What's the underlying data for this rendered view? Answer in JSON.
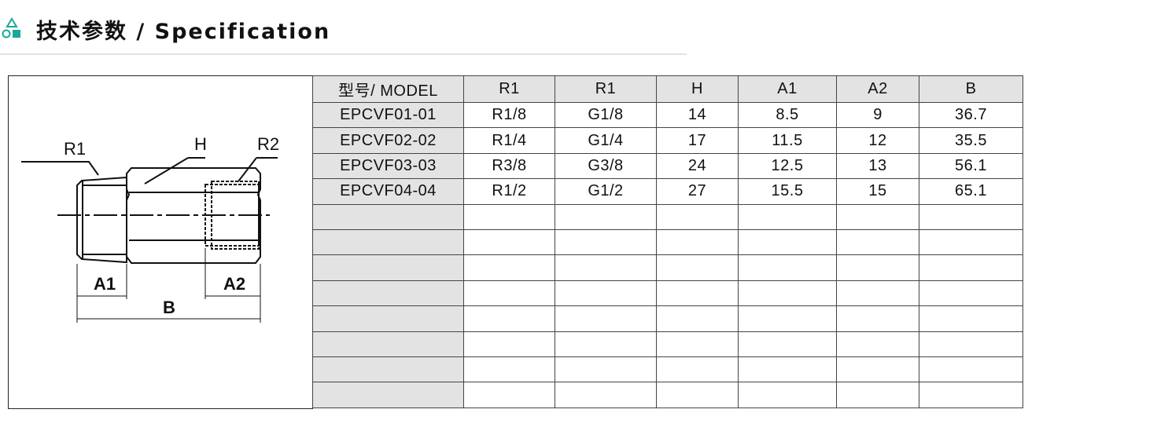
{
  "header": {
    "title": "技术参数 / Specification",
    "icon": "shapes-icon",
    "accent": "#1aa89a"
  },
  "drawing": {
    "labels": {
      "r1": "R1",
      "h": "H",
      "r2": "R2",
      "a1": "A1",
      "a2": "A2",
      "b": "B"
    }
  },
  "table": {
    "columns": [
      "型号/ MODEL",
      "R1",
      "R1",
      "H",
      "A1",
      "A2",
      "B"
    ],
    "rows": [
      [
        "EPCVF01-01",
        "R1/8",
        "G1/8",
        "14",
        "8.5",
        "9",
        "36.7"
      ],
      [
        "EPCVF02-02",
        "R1/4",
        "G1/4",
        "17",
        "11.5",
        "12",
        "35.5"
      ],
      [
        "EPCVF03-03",
        "R3/8",
        "G3/8",
        "24",
        "12.5",
        "13",
        "56.1"
      ],
      [
        "EPCVF04-04",
        "R1/2",
        "G1/2",
        "27",
        "15.5",
        "15",
        "65.1"
      ],
      [
        "",
        "",
        "",
        "",
        "",
        "",
        ""
      ],
      [
        "",
        "",
        "",
        "",
        "",
        "",
        ""
      ],
      [
        "",
        "",
        "",
        "",
        "",
        "",
        ""
      ],
      [
        "",
        "",
        "",
        "",
        "",
        "",
        ""
      ],
      [
        "",
        "",
        "",
        "",
        "",
        "",
        ""
      ],
      [
        "",
        "",
        "",
        "",
        "",
        "",
        ""
      ],
      [
        "",
        "",
        "",
        "",
        "",
        "",
        ""
      ],
      [
        "",
        "",
        "",
        "",
        "",
        "",
        ""
      ]
    ]
  }
}
